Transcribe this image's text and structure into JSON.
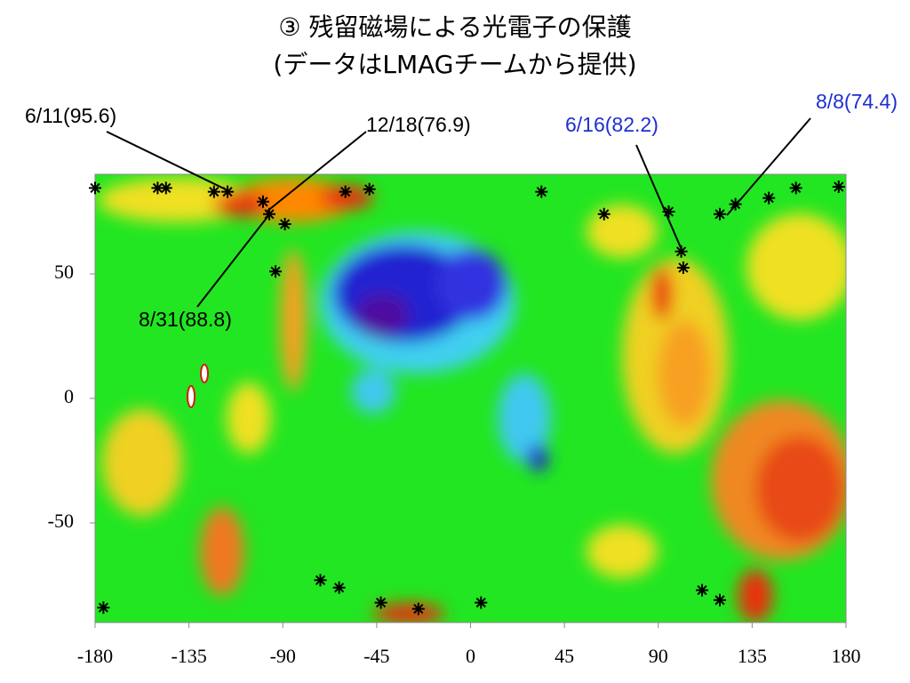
{
  "chart_data": {
    "type": "scatter",
    "title": "③ 残留磁場による光電子の保護",
    "subtitle": "(データはLMAGチームから提供)",
    "x": [
      -180,
      -150,
      -146,
      -123,
      -116.5,
      -99.5,
      -96.5,
      -89,
      -93.5,
      -60,
      -48.5,
      34,
      64,
      95,
      101,
      102,
      119.5,
      127,
      143,
      156,
      176.5,
      -176,
      -72,
      -63,
      -43,
      -25,
      5,
      111,
      119.5
    ],
    "values": [
      84.5,
      84.5,
      84.5,
      83,
      83,
      79,
      74,
      70,
      51,
      83,
      84,
      83,
      74,
      75,
      59,
      52.5,
      74,
      78,
      80.5,
      84.5,
      85,
      -84,
      -73,
      -76,
      -82,
      -84.5,
      -82,
      -77,
      -81
    ],
    "color": "#000000",
    "xlim": [
      -180,
      180
    ],
    "ylim": [
      -90,
      90
    ],
    "xticks": [
      -180,
      -135,
      -90,
      -45,
      0,
      45,
      90,
      135,
      180
    ],
    "yticks": [
      -50,
      0,
      50
    ],
    "annotations": [
      {
        "text": "6/11(95.6)",
        "color": "#000000"
      },
      {
        "text": "12/18(76.9)",
        "color": "#000000"
      },
      {
        "text": "8/31(88.8)",
        "color": "#000000"
      },
      {
        "text": "6/16(82.2)",
        "color": "#1f2fd0"
      },
      {
        "text": "8/8(74.4)",
        "color": "#1f2fd0"
      }
    ]
  }
}
